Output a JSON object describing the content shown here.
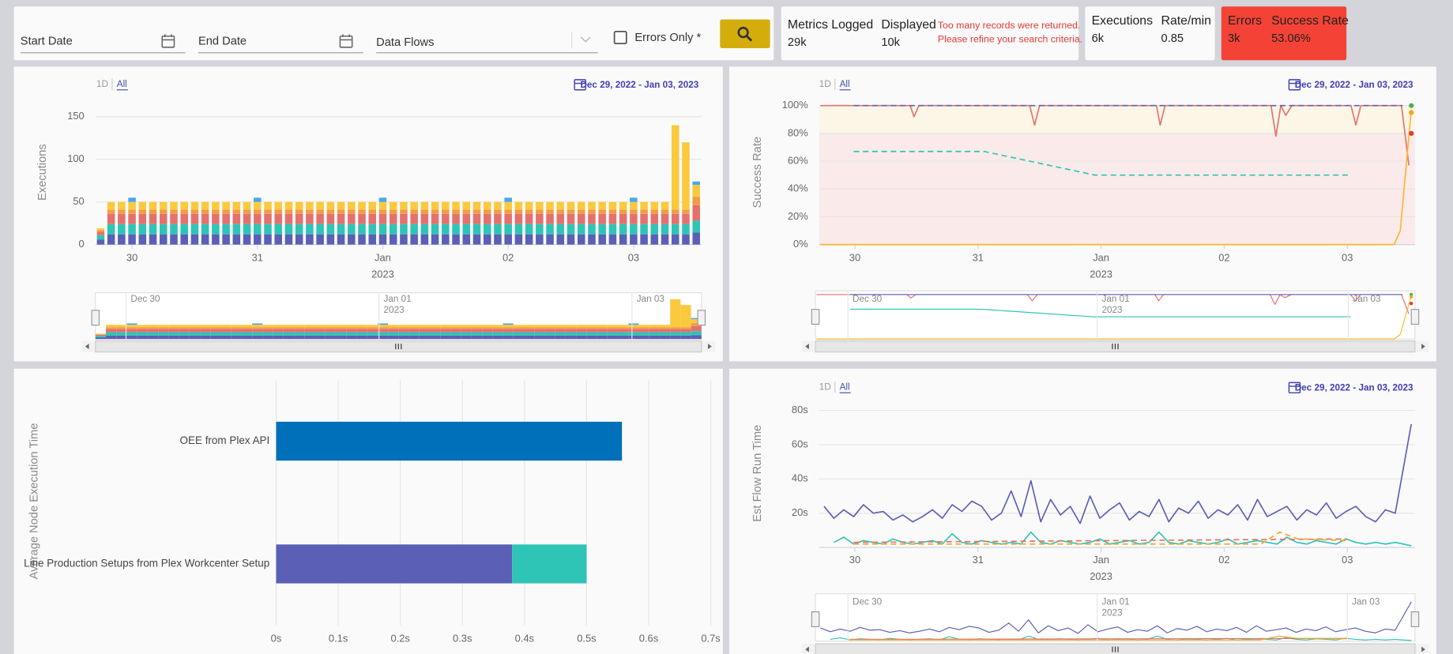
{
  "toolbar": {
    "start_date": "Start Date",
    "end_date": "End Date",
    "data_flows": "Data Flows",
    "errors_only": "Errors Only *"
  },
  "stats": {
    "metrics_logged": {
      "label": "Metrics Logged",
      "value": "29k"
    },
    "displayed": {
      "label": "Displayed",
      "value": "10k"
    },
    "warning": [
      "Too many records were returned.",
      "Please refine your search criteria."
    ],
    "executions": {
      "label": "Executions",
      "value": "6k"
    },
    "rate": {
      "label": "Rate/min",
      "value": "0.85"
    },
    "errors": {
      "label": "Errors",
      "value": "3k"
    },
    "success_rate": {
      "label": "Success Rate",
      "value": "53.06%"
    }
  },
  "chart_data": [
    {
      "type": "bar",
      "stacked": true,
      "y_label": "Executions",
      "range_buttons": [
        "1D",
        "All"
      ],
      "selected_range": "All",
      "date_range": "Dec 29, 2022 - Jan 03, 2023",
      "categories": [
        null,
        null,
        null,
        "30",
        null,
        null,
        null,
        null,
        null,
        null,
        null,
        null,
        null,
        null,
        null,
        "31",
        null,
        null,
        null,
        null,
        null,
        null,
        null,
        null,
        null,
        null,
        null,
        "Jan",
        null,
        null,
        null,
        null,
        null,
        null,
        null,
        null,
        null,
        null,
        null,
        "02",
        null,
        null,
        null,
        null,
        null,
        null,
        null,
        null,
        null,
        null,
        null,
        "03",
        null,
        null,
        null,
        null,
        null,
        null
      ],
      "x_sublabels": [
        null,
        null,
        null,
        null,
        null,
        null,
        null,
        null,
        null,
        null,
        null,
        null,
        null,
        null,
        null,
        null,
        null,
        null,
        null,
        null,
        null,
        null,
        null,
        null,
        null,
        null,
        null,
        "2023",
        null,
        null,
        null,
        null,
        null,
        null,
        null,
        null,
        null,
        null,
        null,
        null,
        null,
        null,
        null,
        null,
        null,
        null,
        null,
        null,
        null,
        null,
        null,
        null,
        null,
        null,
        null,
        null,
        null,
        null
      ],
      "ylim": [
        0,
        150
      ],
      "yticks": [
        0,
        50,
        100,
        150
      ],
      "grid": true,
      "series": [
        {
          "color": "#5b5fb5",
          "values": [
            6,
            12,
            12,
            12,
            12,
            12,
            12,
            12,
            12,
            12,
            12,
            12,
            12,
            12,
            12,
            12,
            12,
            12,
            12,
            12,
            12,
            12,
            12,
            12,
            12,
            12,
            12,
            12,
            12,
            12,
            12,
            12,
            12,
            12,
            12,
            12,
            12,
            12,
            12,
            12,
            12,
            12,
            12,
            12,
            12,
            12,
            12,
            12,
            12,
            12,
            12,
            12,
            12,
            12,
            12,
            12,
            12,
            14
          ]
        },
        {
          "color": "#2ec4b6",
          "values": [
            5,
            12,
            12,
            12,
            12,
            12,
            12,
            12,
            12,
            12,
            12,
            12,
            12,
            12,
            12,
            12,
            12,
            12,
            12,
            12,
            12,
            12,
            12,
            12,
            12,
            12,
            12,
            12,
            12,
            12,
            12,
            12,
            12,
            12,
            12,
            12,
            12,
            12,
            12,
            12,
            12,
            12,
            12,
            12,
            12,
            12,
            12,
            12,
            12,
            12,
            12,
            12,
            12,
            12,
            12,
            12,
            12,
            14
          ]
        },
        {
          "color": "#e4716c",
          "values": [
            4,
            12,
            12,
            12,
            12,
            12,
            12,
            12,
            12,
            12,
            12,
            12,
            12,
            12,
            12,
            12,
            12,
            12,
            12,
            12,
            12,
            12,
            12,
            12,
            12,
            12,
            12,
            12,
            12,
            12,
            12,
            12,
            12,
            12,
            12,
            12,
            12,
            12,
            12,
            12,
            12,
            12,
            12,
            12,
            12,
            12,
            12,
            12,
            12,
            12,
            12,
            12,
            12,
            12,
            12,
            12,
            12,
            18
          ]
        },
        {
          "color": "#f19c4a",
          "values": [
            2,
            5,
            5,
            5,
            5,
            5,
            5,
            5,
            5,
            5,
            5,
            5,
            5,
            5,
            5,
            5,
            5,
            5,
            5,
            5,
            5,
            5,
            5,
            5,
            5,
            5,
            5,
            5,
            5,
            5,
            5,
            5,
            5,
            5,
            5,
            5,
            5,
            5,
            5,
            5,
            5,
            5,
            5,
            5,
            5,
            5,
            5,
            5,
            5,
            5,
            5,
            5,
            5,
            5,
            5,
            5,
            5,
            10
          ]
        },
        {
          "color": "#fbc93d",
          "values": [
            2,
            9,
            9,
            9,
            9,
            9,
            9,
            9,
            9,
            9,
            9,
            9,
            9,
            9,
            9,
            9,
            9,
            9,
            9,
            9,
            9,
            9,
            9,
            9,
            9,
            9,
            9,
            9,
            9,
            9,
            9,
            9,
            9,
            9,
            9,
            9,
            9,
            9,
            9,
            9,
            9,
            9,
            9,
            9,
            9,
            9,
            9,
            9,
            9,
            9,
            9,
            9,
            9,
            9,
            9,
            99,
            79,
            14
          ]
        },
        {
          "color": "#4aa8e8",
          "values": [
            null,
            null,
            null,
            5,
            null,
            null,
            null,
            null,
            null,
            null,
            null,
            null,
            null,
            null,
            null,
            5,
            null,
            null,
            null,
            null,
            null,
            null,
            null,
            null,
            null,
            null,
            null,
            5,
            null,
            null,
            null,
            null,
            null,
            null,
            null,
            null,
            null,
            null,
            null,
            5,
            null,
            null,
            null,
            null,
            null,
            null,
            null,
            null,
            null,
            null,
            null,
            5,
            null,
            null,
            null,
            null,
            null,
            4
          ]
        }
      ],
      "navigator_labels": [
        "Dec 30",
        "Jan 01",
        "2023",
        "Jan 03"
      ]
    },
    {
      "type": "line",
      "y_label": "Success Rate",
      "range_buttons": [
        "1D",
        "All"
      ],
      "selected_range": "All",
      "date_range": "Dec 29, 2022 - Jan 03, 2023",
      "xlim": [
        29.71,
        34.55
      ],
      "xticks": [
        30,
        31,
        {
          "value": 32,
          "label": "Jan"
        },
        {
          "value": 33,
          "label": "02"
        },
        {
          "value": 34,
          "label": "03"
        }
      ],
      "x_sublabels": [
        null,
        null,
        "2023",
        null,
        null
      ],
      "ylim": [
        0,
        100
      ],
      "yticks": [
        {
          "value": 0,
          "label": "0%"
        },
        {
          "value": 20,
          "label": "20%"
        },
        {
          "value": 40,
          "label": "40%"
        },
        {
          "value": 60,
          "label": "60%"
        },
        {
          "value": 80,
          "label": "80%"
        },
        {
          "value": 100,
          "label": "100%"
        }
      ],
      "grid": true,
      "bands": [
        {
          "from": 0,
          "to": 80,
          "color": "#fbeaea"
        },
        {
          "from": 80,
          "to": 100,
          "color": "#fcf6e7"
        }
      ],
      "series": [
        {
          "color": "#e4716c",
          "x": [
            29.72,
            30.45,
            30.48,
            30.52,
            31.42,
            31.46,
            31.5,
            32.45,
            32.48,
            32.52,
            33.38,
            33.42,
            33.46,
            33.5,
            33.55,
            34.03,
            34.07,
            34.11,
            34.44,
            34.5
          ],
          "values": [
            100,
            100,
            92,
            100,
            100,
            86,
            100,
            100,
            86,
            100,
            100,
            78,
            100,
            93,
            100,
            100,
            86,
            100,
            100,
            57
          ]
        },
        {
          "color": "#5b5fb5",
          "dashed": true,
          "x": [
            29.99,
            34.45
          ],
          "values": [
            100,
            100
          ]
        },
        {
          "color": "#2ec4b6",
          "dashed": true,
          "x": [
            29.99,
            31.05,
            31.95,
            34.03
          ],
          "values": [
            67,
            67,
            50,
            50
          ]
        },
        {
          "color": "#fbb631",
          "x": [
            29.72,
            34.38,
            34.43,
            34.52
          ],
          "values": [
            0,
            0,
            10,
            97
          ]
        },
        {
          "color": "#4caf50",
          "marker": true,
          "x": [
            34.52
          ],
          "values": [
            100
          ]
        },
        {
          "color": "#f5a623",
          "marker": true,
          "x": [
            34.52
          ],
          "values": [
            95
          ]
        },
        {
          "color": "#e53935",
          "marker": true,
          "x": [
            34.52
          ],
          "values": [
            80
          ]
        }
      ],
      "navigator_labels": [
        "Dec 30",
        "Jan 01",
        "2023",
        "Jan 03"
      ]
    },
    {
      "type": "horizontal_bar",
      "stacked": true,
      "y_label": "Average Node Execution Time",
      "categories": [
        "OEE from Plex API",
        "Line Production Setups from Plex Workcenter Setup"
      ],
      "xlim": [
        0,
        0.7
      ],
      "xticks": [
        {
          "value": 0,
          "label": "0s"
        },
        {
          "value": 0.1,
          "label": "0.1s"
        },
        {
          "value": 0.2,
          "label": "0.2s"
        },
        {
          "value": 0.3,
          "label": "0.3s"
        },
        {
          "value": 0.4,
          "label": "0.4s"
        },
        {
          "value": 0.5,
          "label": "0.5s"
        },
        {
          "value": 0.6,
          "label": "0.6s"
        },
        {
          "value": 0.7,
          "label": "0.7s"
        }
      ],
      "grid": true,
      "series": [
        {
          "color": "#0070ba",
          "values": [
            0.557,
            null
          ]
        },
        {
          "color": "#5b5fb5",
          "values": [
            null,
            0.38
          ]
        },
        {
          "color": "#2ec4b6",
          "values": [
            null,
            0.12
          ]
        }
      ]
    },
    {
      "type": "line",
      "y_label": "Est Flow Run Time",
      "range_buttons": [
        "1D",
        "All"
      ],
      "selected_range": "All",
      "date_range": "Dec 29, 2022 - Jan 03, 2023",
      "xlim": [
        29.71,
        34.55
      ],
      "xticks": [
        30,
        31,
        {
          "value": 32,
          "label": "Jan"
        },
        {
          "value": 33,
          "label": "02"
        },
        {
          "value": 34,
          "label": "03"
        }
      ],
      "x_sublabels": [
        null,
        null,
        "2023",
        null,
        null
      ],
      "ylim": [
        0,
        80
      ],
      "yticks": [
        {
          "value": 20,
          "label": "20s"
        },
        {
          "value": 40,
          "label": "40s"
        },
        {
          "value": 60,
          "label": "60s"
        },
        {
          "value": 80,
          "label": "80s"
        }
      ],
      "grid": true,
      "x": [
        29.75,
        29.83,
        29.91,
        29.99,
        30.07,
        30.15,
        30.23,
        30.31,
        30.39,
        30.47,
        30.55,
        30.63,
        30.71,
        30.79,
        30.87,
        30.95,
        31.03,
        31.11,
        31.19,
        31.27,
        31.35,
        31.43,
        31.51,
        31.59,
        31.67,
        31.75,
        31.83,
        31.91,
        31.99,
        32.07,
        32.15,
        32.23,
        32.31,
        32.39,
        32.47,
        32.55,
        32.63,
        32.71,
        32.79,
        32.87,
        32.95,
        33.03,
        33.11,
        33.19,
        33.27,
        33.35,
        33.43,
        33.51,
        33.59,
        33.67,
        33.75,
        33.83,
        33.91,
        33.99,
        34.07,
        34.15,
        34.23,
        34.31,
        34.39,
        34.52
      ],
      "series": [
        {
          "color": "#5b5fb5",
          "values": [
            24,
            17,
            22,
            18,
            25,
            20,
            21,
            16,
            19,
            15,
            18,
            22,
            17,
            25,
            21,
            27,
            24,
            16,
            20,
            33,
            18,
            39,
            15,
            28,
            19,
            24,
            14,
            30,
            17,
            22,
            26,
            16,
            21,
            18,
            28,
            15,
            23,
            20,
            27,
            17,
            22,
            19,
            25,
            16,
            28,
            18,
            21,
            24,
            16,
            22,
            19,
            26,
            17,
            21,
            24,
            18,
            15,
            22,
            20,
            72
          ]
        },
        {
          "color": "#2ec4b6",
          "values": [
            null,
            3,
            6,
            2,
            4,
            3,
            2,
            5,
            3,
            2,
            3,
            4,
            2,
            8,
            3,
            2,
            4,
            3,
            2,
            3,
            2,
            9,
            3,
            2,
            4,
            3,
            2,
            3,
            5,
            2,
            3,
            4,
            2,
            3,
            9,
            3,
            2,
            4,
            3,
            2,
            3,
            5,
            2,
            3,
            4,
            3,
            2,
            6,
            3,
            2,
            4,
            3,
            2,
            5,
            3,
            2,
            3,
            2,
            3,
            1
          ]
        },
        {
          "color": "#e4716c",
          "dashed": true,
          "x": [
            29.99,
            34.0
          ],
          "values": [
            3,
            5
          ]
        },
        {
          "color": "#f5a623",
          "dashed": true,
          "x": [
            29.99,
            33.3,
            33.45,
            33.6,
            34.0
          ],
          "values": [
            2,
            2,
            9,
            5,
            4
          ]
        }
      ],
      "navigator_labels": [
        "Dec 30",
        "Jan 01",
        "2023",
        "Jan 03"
      ]
    }
  ]
}
